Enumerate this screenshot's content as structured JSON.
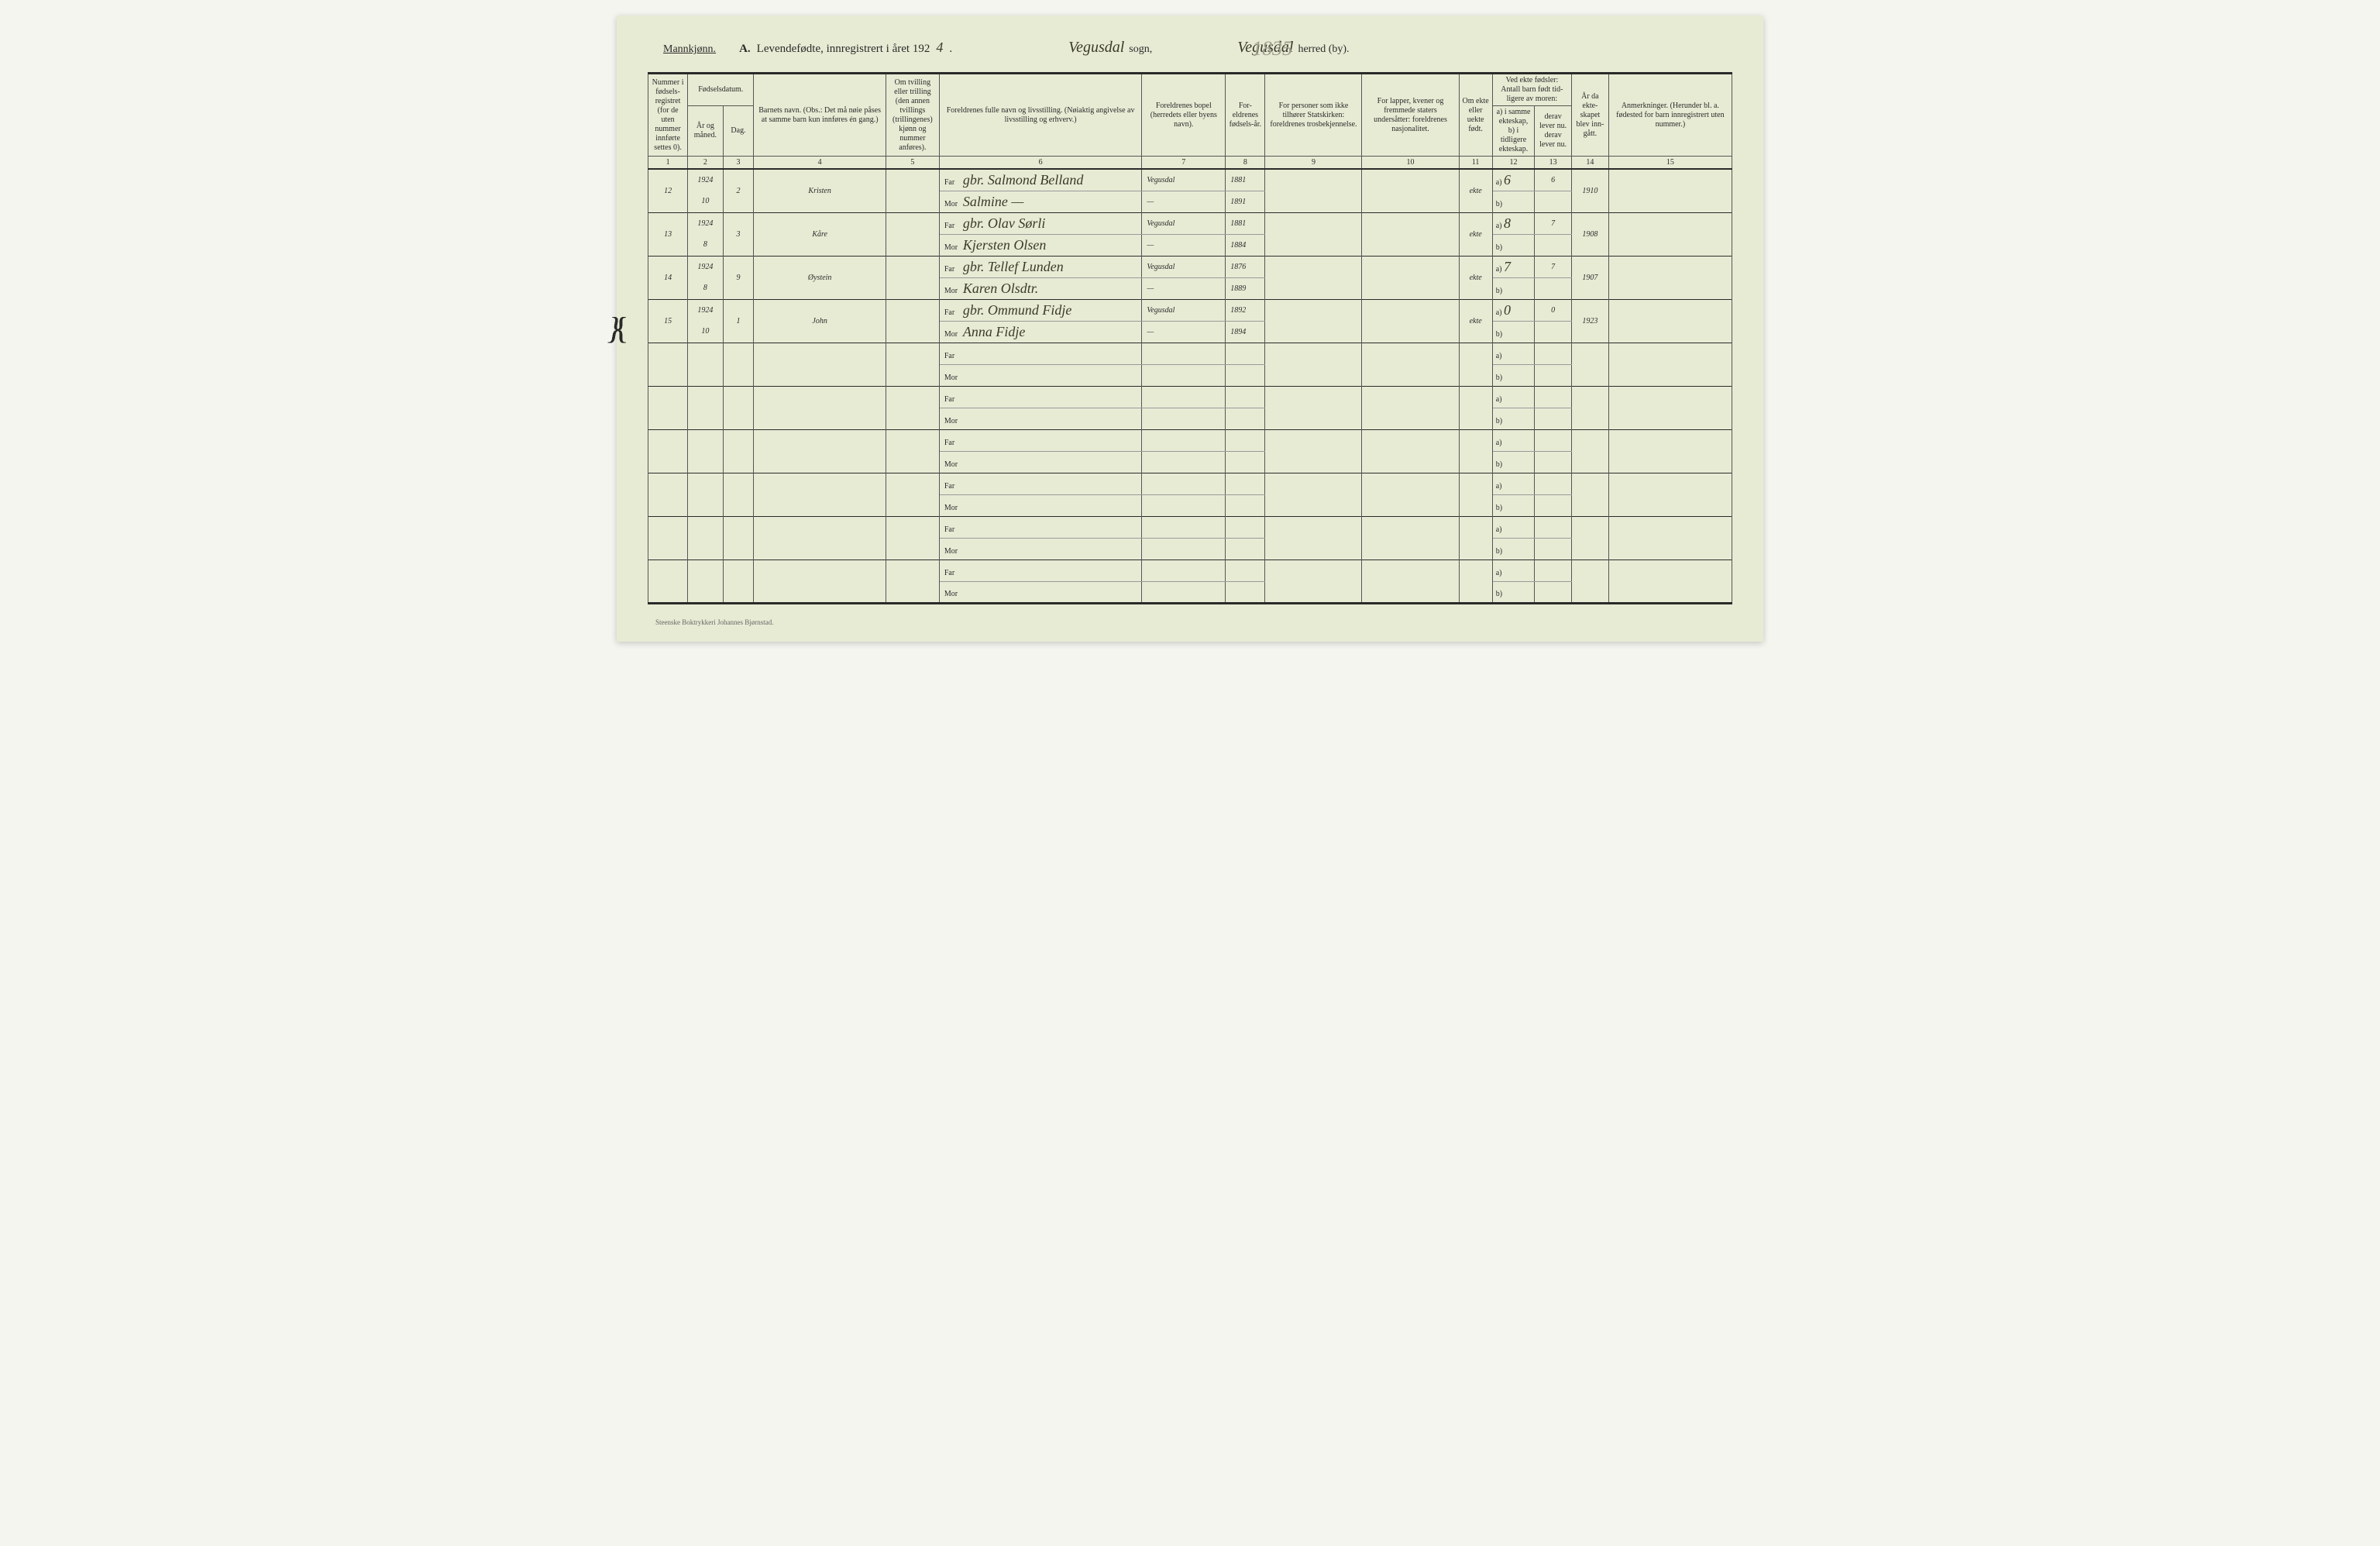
{
  "header": {
    "gender": "Mannkjønn.",
    "title_prefix": "A.",
    "title": "Levendefødte, innregistrert i året 192",
    "year_suffix": "4",
    "faint_number": "1835",
    "sogn_value": "Vegusdal",
    "sogn_label": "sogn,",
    "herred_value": "Vegusdal",
    "herred_label": "herred (by)."
  },
  "columns": {
    "c1": "Nummer i fødsels-registret (for de uten nummer innførte settes 0).",
    "c2_group": "Fødselsdatum.",
    "c2": "År og måned.",
    "c3": "Dag.",
    "c4": "Barnets navn.\n(Obs.: Det må nøie påses at samme barn kun innføres én gang.)",
    "c5": "Om tvilling eller trilling (den annen tvillings (trillingenes) kjønn og nummer anføres).",
    "c6": "Foreldrenes fulle navn og livsstilling.\n(Nøiaktig angivelse av livsstilling og erhverv.)",
    "c7": "Foreldrenes bopel (herredets eller byens navn).",
    "c8": "For-eldrenes fødsels-år.",
    "c9": "For personer som ikke tilhører Statskirken: foreldrenes trosbekjennelse.",
    "c10": "For lapper, kvener og fremmede staters undersåtter: foreldrenes nasjonalitet.",
    "c11": "Om ekte eller uekte født.",
    "c12_13_group": "Ved ekte fødsler: Antall barn født tid-ligere av moren:",
    "c12": "a) i samme ekteskap, b) i tidligere ekteskap.",
    "c13": "derav lever nu. derav lever nu.",
    "c14": "År da ekte-skapet blev inn-gått.",
    "c15": "Anmerkninger.\n(Herunder bl. a. fødested for barn innregistrert uten nummer.)",
    "far": "Far",
    "mor": "Mor",
    "a": "a)",
    "b": "b)"
  },
  "colnums": [
    "1",
    "2",
    "3",
    "4",
    "5",
    "6",
    "7",
    "8",
    "9",
    "10",
    "11",
    "12",
    "13",
    "14",
    "15"
  ],
  "rows": [
    {
      "num": "12",
      "year": "1924",
      "month": "10",
      "day": "2",
      "name": "Kristen",
      "twin": "",
      "far": "gbr. Salmond Belland",
      "mor": "Salmine   —",
      "bopel_far": "Vegusdal",
      "bopel_mor": "—",
      "fyear_far": "1881",
      "fyear_mor": "1891",
      "ekte": "ekte",
      "a_val": "6",
      "a_lev": "6",
      "b_val": "",
      "b_lev": "",
      "marriage": "1910"
    },
    {
      "num": "13",
      "year": "1924",
      "month": "8",
      "day": "3",
      "name": "Kåre",
      "twin": "",
      "far": "gbr. Olav Sørli",
      "mor": "Kjersten Olsen",
      "bopel_far": "Vegusdal",
      "bopel_mor": "—",
      "fyear_far": "1881",
      "fyear_mor": "1884",
      "ekte": "ekte",
      "a_val": "8",
      "a_lev": "7",
      "b_val": "",
      "b_lev": "",
      "marriage": "1908"
    },
    {
      "num": "14",
      "year": "1924",
      "month": "8",
      "day": "9",
      "name": "Øystein",
      "twin": "",
      "far": "gbr. Tellef Lunden",
      "mor": "Karen Olsdtr.",
      "bopel_far": "Vegusdal",
      "bopel_mor": "—",
      "fyear_far": "1876",
      "fyear_mor": "1889",
      "ekte": "ekte",
      "a_val": "7",
      "a_lev": "7",
      "b_val": "",
      "b_lev": "",
      "marriage": "1907"
    },
    {
      "num": "15",
      "year": "1924",
      "month": "10",
      "day": "1",
      "name": "John",
      "twin": "",
      "far": "gbr. Ommund Fidje",
      "mor": "Anna Fidje",
      "bopel_far": "Vegusdal",
      "bopel_mor": "—",
      "fyear_far": "1892",
      "fyear_mor": "1894",
      "ekte": "ekte",
      "a_val": "0",
      "a_lev": "0",
      "b_val": "",
      "b_lev": "",
      "marriage": "1923"
    }
  ],
  "empty_rows": 6,
  "footer": "Steenske Boktrykkeri Johannes Bjørnstad."
}
